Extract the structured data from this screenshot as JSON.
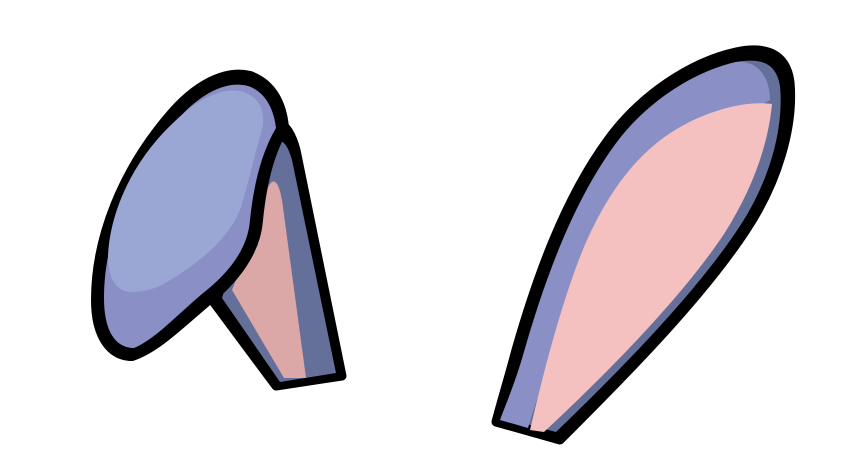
{
  "colors": {
    "background": "#ffffff",
    "outline": "#000000",
    "fur_light": "#9aa6d4",
    "fur_mid": "#8a8fc6",
    "fur_dark": "#65709a",
    "inner_pink": "#f5c0c0",
    "inner_pink_shadow": "#dca7a7"
  },
  "illustration": {
    "subject": "bunny-ears",
    "ears": [
      {
        "side": "left",
        "pose": "folded"
      },
      {
        "side": "right",
        "pose": "upright"
      }
    ]
  }
}
